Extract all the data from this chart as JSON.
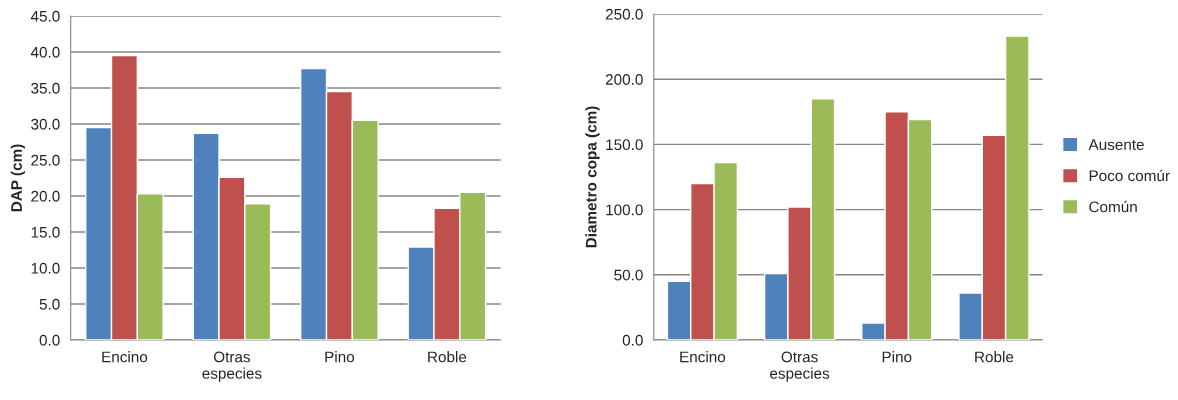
{
  "chart_data": [
    {
      "type": "bar",
      "ylabel": "DAP (cm)",
      "categories": [
        "Encino",
        "Otras\nespecies",
        "Pino",
        "Roble"
      ],
      "series": [
        {
          "color": "#4f81bd",
          "values": [
            29.5,
            28.7,
            37.7,
            12.9
          ]
        },
        {
          "color": "#c0504d",
          "values": [
            39.5,
            22.6,
            34.5,
            18.3
          ]
        },
        {
          "color": "#9bbb59",
          "values": [
            20.3,
            18.9,
            30.5,
            20.5
          ]
        }
      ],
      "ylim": [
        0,
        45
      ],
      "yticks": [
        {
          "value": 0,
          "label": "0.0"
        },
        {
          "value": 5,
          "label": "5.0"
        },
        {
          "value": 10,
          "label": "10.0"
        },
        {
          "value": 15,
          "label": "15.0"
        },
        {
          "value": 20,
          "label": "20.0"
        },
        {
          "value": 25,
          "label": "25.0"
        },
        {
          "value": 30,
          "label": "30.0"
        },
        {
          "value": 35,
          "label": "35.0"
        },
        {
          "value": 40,
          "label": "40.0"
        },
        {
          "value": 45,
          "label": "45.0"
        }
      ],
      "grid": "y"
    },
    {
      "type": "bar",
      "ylabel": "Diametro copa (cm)",
      "categories": [
        "Encino",
        "Otras\nespecies",
        "Pino",
        "Roble"
      ],
      "series": [
        {
          "name": "Ausente",
          "color": "#4f81bd",
          "values": [
            45,
            51,
            13,
            36
          ]
        },
        {
          "name": "Poco comúr",
          "color": "#c0504d",
          "values": [
            120,
            102,
            175,
            157
          ]
        },
        {
          "name": "Común",
          "color": "#9bbb59",
          "values": [
            136,
            185,
            169,
            233
          ]
        }
      ],
      "ylim": [
        0,
        250
      ],
      "yticks": [
        {
          "value": 0,
          "label": "0.0"
        },
        {
          "value": 50,
          "label": "50.0"
        },
        {
          "value": 100,
          "label": "100.0"
        },
        {
          "value": 150,
          "label": "150.0"
        },
        {
          "value": 200,
          "label": "200.0"
        },
        {
          "value": 250,
          "label": "250.0"
        }
      ],
      "grid": "y",
      "legend": "right"
    }
  ]
}
